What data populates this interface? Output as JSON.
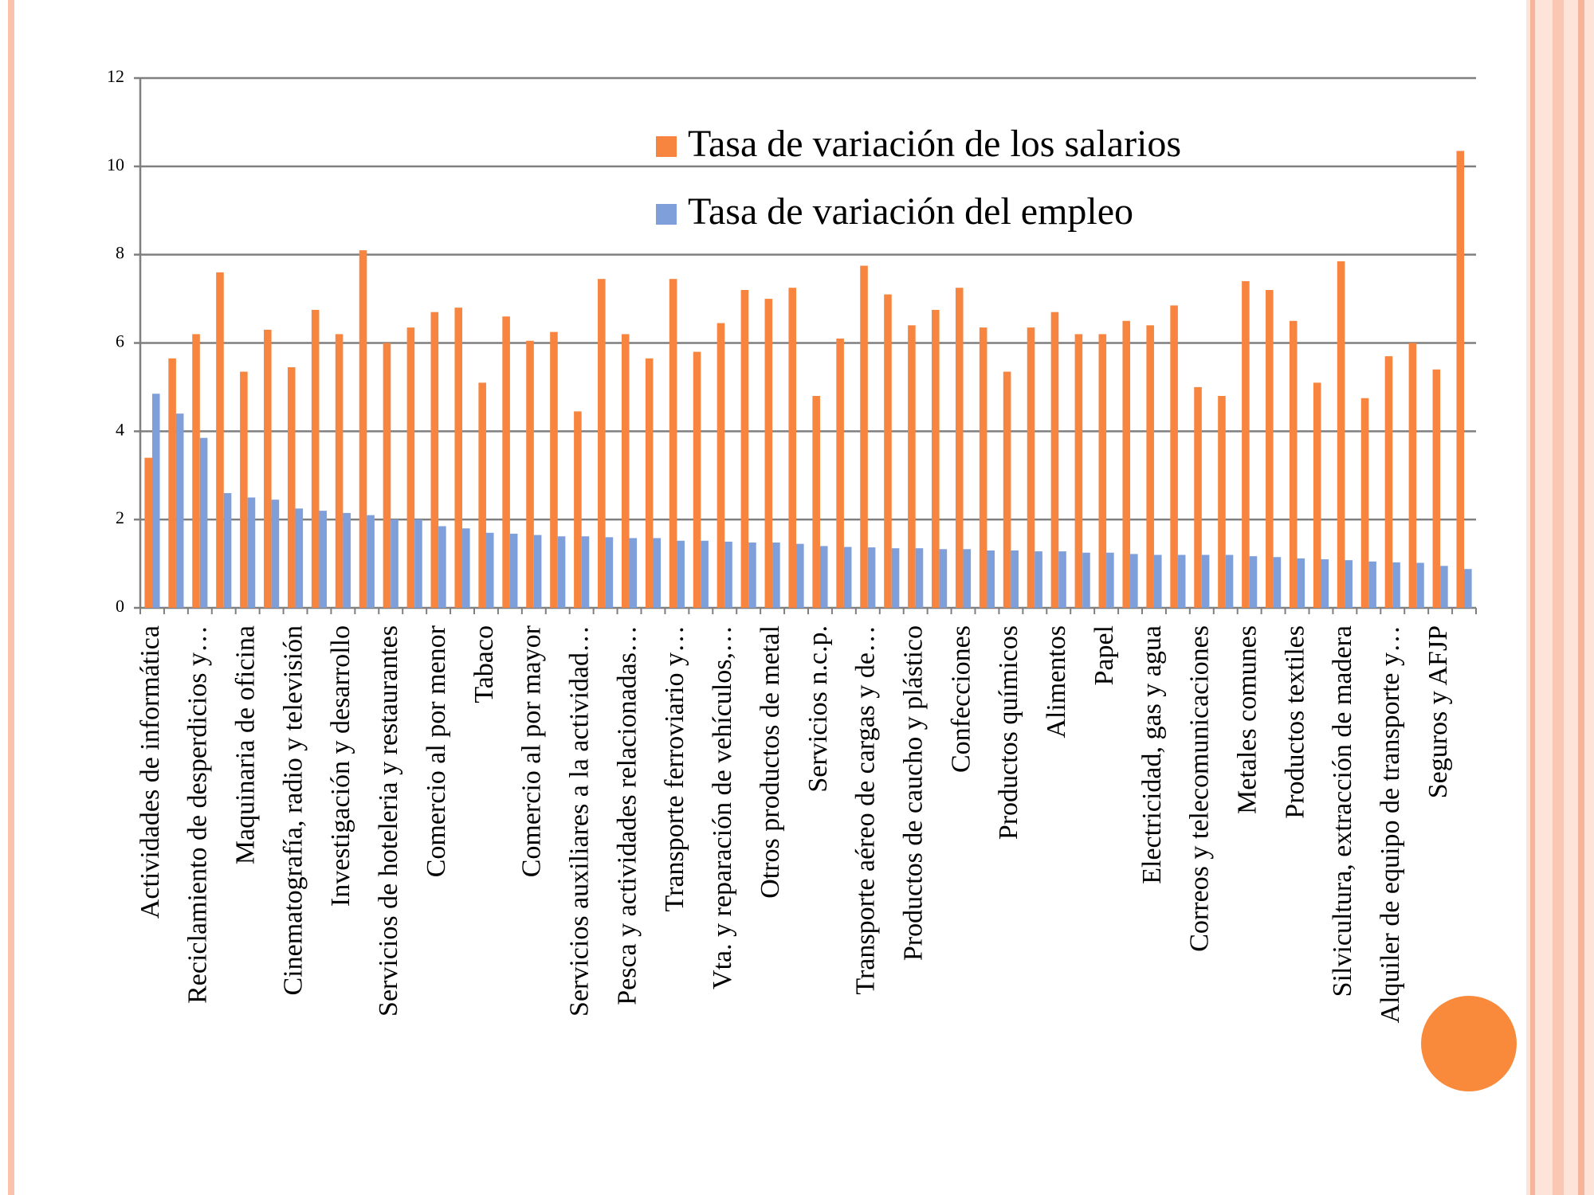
{
  "chart_data": {
    "type": "bar",
    "categories": [
      "Actividades de informática",
      null,
      "Reciclamiento de desperdicios y…",
      null,
      "Maquinaria de oficina",
      null,
      "Cinematografía, radio y televisión",
      null,
      "Investigación y desarrollo",
      null,
      "Servicios de hoteleria y restaurantes",
      null,
      "Comercio al por menor",
      null,
      "Tabaco",
      null,
      "Comercio al por mayor",
      null,
      "Servicios auxiliares a la actividad…",
      null,
      "Pesca y actividades relacionadas…",
      null,
      "Transporte ferroviario y…",
      null,
      "Vta. y reparación de vehículos,…",
      null,
      "Otros productos de metal",
      null,
      "Servicios n.c.p.",
      null,
      "Transporte aéreo de cargas y de…",
      null,
      "Productos de caucho y plástico",
      null,
      "Confecciones",
      null,
      "Productos químicos",
      null,
      "Alimentos",
      null,
      "Papel",
      null,
      "Electricidad, gas y agua",
      null,
      "Correos y telecomunicaciones",
      null,
      "Metales comunes",
      null,
      "Productos textiles",
      null,
      "Silvicultura, extracción de madera",
      null,
      "Alquiler de equipo de transporte y…",
      null,
      "Seguros y AFJP",
      null
    ],
    "series": [
      {
        "name": "Tasa de variación de los salarios",
        "color": "#f7853f",
        "values": [
          3.4,
          5.65,
          6.2,
          7.6,
          5.35,
          6.3,
          5.45,
          6.75,
          6.2,
          8.1,
          6.0,
          6.35,
          6.7,
          6.8,
          5.1,
          6.6,
          6.05,
          6.25,
          4.45,
          7.45,
          6.2,
          5.65,
          7.45,
          5.8,
          6.45,
          7.2,
          7.0,
          7.25,
          4.8,
          6.1,
          7.75,
          7.1,
          6.4,
          6.75,
          7.25,
          6.35,
          5.35,
          6.35,
          6.7,
          6.2,
          6.2,
          6.5,
          6.4,
          6.85,
          5.0,
          4.8,
          7.4,
          7.2,
          6.5,
          5.1,
          7.85,
          4.75,
          5.7,
          6.0,
          5.4,
          10.35
        ]
      },
      {
        "name": "Tasa de variación del empleo",
        "color": "#7f9fdb",
        "values": [
          4.85,
          4.4,
          3.85,
          2.6,
          2.5,
          2.45,
          2.25,
          2.2,
          2.15,
          2.1,
          2.0,
          2.0,
          1.85,
          1.8,
          1.7,
          1.68,
          1.65,
          1.62,
          1.62,
          1.6,
          1.58,
          1.58,
          1.52,
          1.52,
          1.5,
          1.48,
          1.48,
          1.45,
          1.4,
          1.38,
          1.37,
          1.35,
          1.35,
          1.33,
          1.33,
          1.3,
          1.3,
          1.28,
          1.28,
          1.25,
          1.25,
          1.22,
          1.2,
          1.2,
          1.2,
          1.2,
          1.17,
          1.15,
          1.12,
          1.1,
          1.08,
          1.05,
          1.03,
          1.02,
          0.95,
          0.88
        ]
      }
    ],
    "ylim": [
      0,
      12
    ],
    "yticks": [
      0,
      2,
      4,
      6,
      8,
      10,
      12
    ],
    "grid": true,
    "legend": "top-right"
  }
}
